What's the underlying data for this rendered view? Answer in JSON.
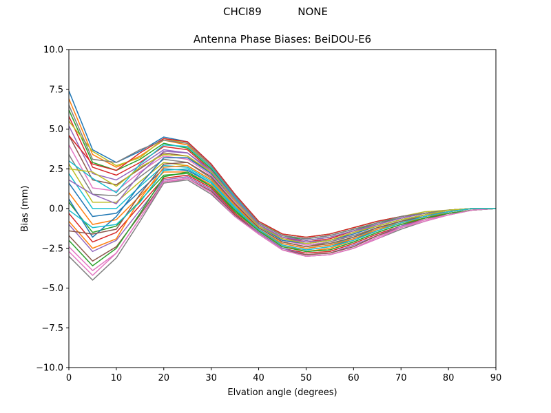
{
  "figure": {
    "suptitle": "CHCI89           NONE"
  },
  "chart_data": {
    "type": "line",
    "title": "Antenna Phase Biases: BeiDOU-E6",
    "xlabel": "Elvation angle (degrees)",
    "ylabel": "Bias (mm)",
    "xlim": [
      0,
      90
    ],
    "ylim": [
      -10.0,
      10.0
    ],
    "xticks": [
      "0",
      "10",
      "20",
      "30",
      "40",
      "50",
      "60",
      "70",
      "80",
      "90"
    ],
    "yticks": [
      "−10.0",
      "−7.5",
      "−5.0",
      "−2.5",
      "0.0",
      "2.5",
      "5.0",
      "7.5",
      "10.0"
    ],
    "grid": false,
    "legend": "none",
    "x": [
      0,
      5,
      10,
      15,
      20,
      25,
      30,
      35,
      40,
      45,
      50,
      55,
      60,
      65,
      70,
      75,
      80,
      85,
      90
    ],
    "palette": [
      "#1f77b4",
      "#ff7f0e",
      "#2ca02c",
      "#d62728",
      "#9467bd",
      "#8c564b",
      "#e377c2",
      "#7f7f7f",
      "#bcbd22",
      "#17becf"
    ],
    "series": [
      {
        "values": [
          7.4,
          3.7,
          2.9,
          3.6,
          4.5,
          4.2,
          2.8,
          0.9,
          -0.8,
          -1.6,
          -1.8,
          -1.6,
          -1.2,
          -0.8,
          -0.5,
          -0.3,
          -0.1,
          0.0,
          0.0
        ]
      },
      {
        "values": [
          6.9,
          3.4,
          2.6,
          3.3,
          4.3,
          4.0,
          2.6,
          0.8,
          -0.9,
          -1.7,
          -1.9,
          -1.7,
          -1.3,
          -0.9,
          -0.5,
          -0.3,
          -0.1,
          0.0,
          0.0
        ]
      },
      {
        "values": [
          6.2,
          2.9,
          2.4,
          3.1,
          4.1,
          3.8,
          2.5,
          0.7,
          -0.9,
          -1.7,
          -2.0,
          -1.8,
          -1.4,
          -0.9,
          -0.6,
          -0.3,
          -0.1,
          0.0,
          0.0
        ]
      },
      {
        "values": [
          5.8,
          2.6,
          2.1,
          2.9,
          3.9,
          3.7,
          2.4,
          0.6,
          -1.0,
          -1.8,
          -2.1,
          -1.9,
          -1.4,
          -1.0,
          -0.6,
          -0.3,
          -0.1,
          0.0,
          0.0
        ]
      },
      {
        "values": [
          5.2,
          2.2,
          1.8,
          2.7,
          3.7,
          3.5,
          2.3,
          0.5,
          -1.0,
          -1.9,
          -2.1,
          -2.0,
          -1.5,
          -1.0,
          -0.6,
          -0.3,
          -0.1,
          0.0,
          0.0
        ]
      },
      {
        "values": [
          4.6,
          1.8,
          1.5,
          2.5,
          3.5,
          3.3,
          2.2,
          0.5,
          -1.1,
          -1.9,
          -2.2,
          -2.0,
          -1.5,
          -1.1,
          -0.7,
          -0.4,
          -0.1,
          0.0,
          0.0
        ]
      },
      {
        "values": [
          4.0,
          1.3,
          1.1,
          2.3,
          3.3,
          3.1,
          2.1,
          0.4,
          -1.1,
          -2.0,
          -2.3,
          -2.1,
          -1.6,
          -1.1,
          -0.7,
          -0.4,
          -0.1,
          0.0,
          0.0
        ]
      },
      {
        "values": [
          3.4,
          0.9,
          0.8,
          2.0,
          3.1,
          2.9,
          1.9,
          0.3,
          -1.2,
          -2.1,
          -2.4,
          -2.1,
          -1.7,
          -1.2,
          -0.8,
          -0.4,
          -0.2,
          0.0,
          0.0
        ]
      },
      {
        "values": [
          2.8,
          0.4,
          0.4,
          1.7,
          2.9,
          2.7,
          1.8,
          0.2,
          -1.2,
          -2.1,
          -2.4,
          -2.2,
          -1.8,
          -1.2,
          -0.8,
          -0.5,
          -0.2,
          0.0,
          0.0
        ]
      },
      {
        "values": [
          2.2,
          0.0,
          0.0,
          1.4,
          2.7,
          2.6,
          1.7,
          0.1,
          -1.3,
          -2.2,
          -2.5,
          -2.3,
          -1.8,
          -1.3,
          -0.8,
          -0.5,
          -0.2,
          0.0,
          0.0
        ]
      },
      {
        "values": [
          1.6,
          -0.5,
          -0.3,
          1.1,
          2.5,
          2.4,
          1.6,
          0.0,
          -1.3,
          -2.3,
          -2.6,
          -2.4,
          -1.9,
          -1.4,
          -0.9,
          -0.5,
          -0.2,
          0.0,
          0.0
        ]
      },
      {
        "values": [
          1.0,
          -1.0,
          -0.7,
          0.8,
          2.3,
          2.3,
          1.5,
          -0.1,
          -1.4,
          -2.3,
          -2.7,
          -2.5,
          -2.0,
          -1.4,
          -0.9,
          -0.6,
          -0.2,
          0.0,
          0.0
        ]
      },
      {
        "values": [
          0.4,
          -1.5,
          -1.1,
          0.5,
          2.1,
          2.2,
          1.4,
          -0.2,
          -1.4,
          -2.4,
          -2.7,
          -2.6,
          -2.1,
          -1.5,
          -1.0,
          -0.6,
          -0.3,
          -0.1,
          0.0
        ]
      },
      {
        "values": [
          -0.3,
          -2.1,
          -1.5,
          0.2,
          1.9,
          2.1,
          1.3,
          -0.3,
          -1.5,
          -2.5,
          -2.8,
          -2.7,
          -2.2,
          -1.6,
          -1.1,
          -0.6,
          -0.3,
          -0.1,
          0.0
        ]
      },
      {
        "values": [
          -1.0,
          -2.7,
          -2.0,
          -0.1,
          1.8,
          2.0,
          1.2,
          -0.4,
          -1.5,
          -2.5,
          -2.9,
          -2.8,
          -2.3,
          -1.7,
          -1.1,
          -0.7,
          -0.3,
          -0.1,
          0.0
        ]
      },
      {
        "values": [
          -1.7,
          -3.3,
          -2.4,
          -0.4,
          1.7,
          1.9,
          1.1,
          -0.4,
          -1.6,
          -2.6,
          -2.9,
          -2.8,
          -2.4,
          -1.7,
          -1.2,
          -0.7,
          -0.3,
          -0.1,
          0.0
        ]
      },
      {
        "values": [
          -2.4,
          -3.9,
          -2.8,
          -0.6,
          1.6,
          1.9,
          1.0,
          -0.5,
          -1.6,
          -2.6,
          -3.0,
          -2.9,
          -2.5,
          -1.8,
          -1.2,
          -0.7,
          -0.4,
          -0.1,
          0.0
        ]
      },
      {
        "values": [
          -3.0,
          -4.5,
          -3.1,
          -0.8,
          1.6,
          1.8,
          0.9,
          -0.5,
          -1.6,
          -2.6,
          -3.0,
          -2.9,
          -2.5,
          -1.9,
          -1.3,
          -0.8,
          -0.4,
          -0.1,
          0.0
        ]
      },
      {
        "values": [
          5.5,
          3.6,
          2.7,
          3.2,
          4.4,
          4.1,
          2.7,
          0.8,
          -0.9,
          -1.6,
          -1.8,
          -1.6,
          -1.2,
          -0.8,
          -0.5,
          -0.2,
          -0.1,
          0.0,
          0.0
        ]
      },
      {
        "values": [
          3.0,
          1.9,
          1.0,
          2.8,
          4.0,
          3.9,
          2.6,
          0.7,
          -0.9,
          -1.7,
          -1.9,
          -1.7,
          -1.3,
          -0.9,
          -0.5,
          -0.3,
          -0.1,
          0.0,
          0.0
        ]
      },
      {
        "values": [
          0.6,
          -1.8,
          -0.5,
          1.5,
          3.2,
          3.2,
          2.2,
          0.5,
          -1.1,
          -2.0,
          -2.2,
          -2.0,
          -1.6,
          -1.1,
          -0.7,
          -0.4,
          -0.1,
          0.0,
          0.0
        ]
      },
      {
        "values": [
          -0.8,
          -2.5,
          -1.9,
          0.6,
          2.6,
          2.7,
          1.8,
          0.2,
          -1.3,
          -2.2,
          -2.5,
          -2.3,
          -1.9,
          -1.3,
          -0.9,
          -0.5,
          -0.2,
          0.0,
          0.0
        ]
      },
      {
        "values": [
          -2.0,
          -3.6,
          -2.5,
          -0.3,
          2.0,
          2.3,
          1.4,
          -0.1,
          -1.4,
          -2.4,
          -2.7,
          -2.6,
          -2.1,
          -1.5,
          -1.0,
          -0.6,
          -0.3,
          -0.1,
          0.0
        ]
      },
      {
        "values": [
          4.6,
          2.8,
          2.4,
          3.5,
          4.4,
          4.2,
          2.8,
          0.9,
          -0.8,
          -1.6,
          -1.8,
          -1.6,
          -1.2,
          -0.8,
          -0.5,
          -0.3,
          -0.1,
          0.0,
          0.0
        ]
      },
      {
        "values": [
          1.8,
          0.9,
          0.3,
          2.2,
          3.6,
          3.5,
          2.4,
          0.6,
          -1.0,
          -1.8,
          -2.0,
          -1.8,
          -1.4,
          -1.0,
          -0.6,
          -0.3,
          -0.1,
          0.0,
          0.0
        ]
      },
      {
        "values": [
          -1.4,
          -1.6,
          -1.3,
          0.9,
          2.8,
          2.9,
          2.0,
          0.3,
          -1.2,
          -2.1,
          -2.4,
          -2.2,
          -1.8,
          -1.2,
          -0.8,
          -0.5,
          -0.2,
          0.0,
          0.0
        ]
      },
      {
        "values": [
          -2.7,
          -4.2,
          -2.8,
          -0.6,
          1.7,
          1.9,
          1.0,
          -0.5,
          -1.6,
          -2.6,
          -3.0,
          -2.9,
          -2.5,
          -1.9,
          -1.2,
          -0.8,
          -0.4,
          -0.1,
          0.0
        ]
      },
      {
        "values": [
          6.5,
          3.1,
          2.9,
          3.7,
          4.3,
          4.1,
          2.7,
          0.8,
          -0.9,
          -1.7,
          -1.9,
          -1.7,
          -1.3,
          -0.9,
          -0.5,
          -0.3,
          -0.1,
          0.0,
          0.0
        ]
      },
      {
        "values": [
          2.5,
          2.3,
          1.4,
          2.6,
          3.4,
          3.3,
          2.3,
          0.5,
          -1.1,
          -1.9,
          -2.2,
          -2.0,
          -1.5,
          -1.1,
          -0.7,
          -0.4,
          -0.1,
          0.0,
          0.0
        ]
      },
      {
        "values": [
          -0.1,
          -1.2,
          -1.0,
          0.4,
          2.4,
          2.5,
          1.6,
          0.0,
          -1.3,
          -2.3,
          -2.6,
          -2.4,
          -2.0,
          -1.4,
          -0.9,
          -0.5,
          -0.2,
          0.0,
          0.0
        ]
      }
    ]
  }
}
